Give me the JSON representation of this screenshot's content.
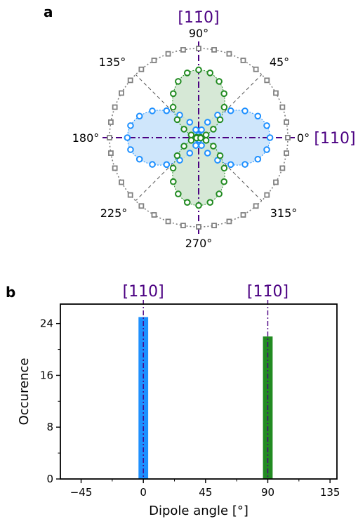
{
  "colors": {
    "blue": "#1e90ff",
    "green": "#228b22",
    "gray": "#808080",
    "purple": "#4b0082",
    "blue_fill": "#cfe6fb",
    "green_fill": "#cfe4cf"
  },
  "panels": {
    "a": {
      "letter": "a"
    },
    "b": {
      "letter": "b"
    }
  },
  "chart_data": [
    {
      "type": "polar",
      "panel": "a",
      "angle_ticks": [
        {
          "angle": 0,
          "label": "0°"
        },
        {
          "angle": 45,
          "label": "45°"
        },
        {
          "angle": 90,
          "label": "90°"
        },
        {
          "angle": 135,
          "label": "135°"
        },
        {
          "angle": 180,
          "label": "180°"
        },
        {
          "angle": 225,
          "label": "225°"
        },
        {
          "angle": 270,
          "label": "270°"
        },
        {
          "angle": 315,
          "label": "315°"
        }
      ],
      "annotations": {
        "top": "[11̄0]",
        "right": "[110]"
      },
      "series": [
        {
          "color": "blue",
          "marker": "circle",
          "amplitude": 0.8,
          "angle_step": 10,
          "function": "cos^2(theta)"
        },
        {
          "color": "green",
          "marker": "circle",
          "amplitude": 0.76,
          "angle_step": 10,
          "function": "sin^2(theta)"
        },
        {
          "color": "gray",
          "marker": "square",
          "amplitude": 1.0,
          "angle_step": 10,
          "function": "constant"
        }
      ]
    },
    {
      "type": "bar",
      "panel": "b",
      "xlabel": "Dipole angle [°]",
      "ylabel": "Occurence",
      "xlim": [
        -60,
        140
      ],
      "ylim": [
        0,
        27
      ],
      "xticks": [
        -45,
        0,
        45,
        90,
        135
      ],
      "xtick_labels": [
        "−45",
        "0",
        "45",
        "90",
        "135"
      ],
      "yticks": [
        0,
        8,
        16,
        24
      ],
      "yticks_minor": [
        4,
        12,
        20
      ],
      "xticks_minor": [
        -22.5,
        22.5,
        67.5,
        112.5
      ],
      "bar_width": 7,
      "bars": [
        {
          "x": 0,
          "value": 25,
          "color": "blue"
        },
        {
          "x": 90,
          "value": 22,
          "color": "green"
        }
      ],
      "guides": [
        {
          "x": 0,
          "label": "[110]"
        },
        {
          "x": 90,
          "label": "[11̄0]"
        }
      ]
    }
  ]
}
